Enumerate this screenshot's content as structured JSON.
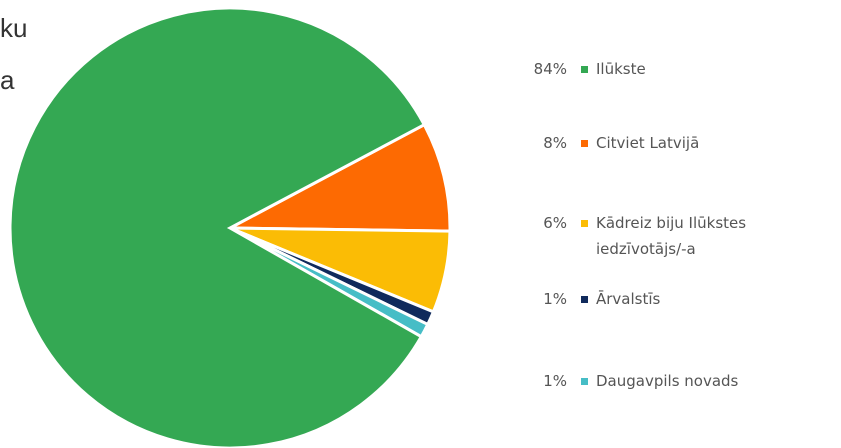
{
  "title_fragment": [
    "ku",
    "a"
  ],
  "chart_data": {
    "type": "pie",
    "slices": [
      {
        "label": "Ilūkste",
        "percent_label": "84%",
        "value": 84,
        "color": "#34a853"
      },
      {
        "label": "Citviet Latvijā",
        "percent_label": "8%",
        "value": 8,
        "color": "#fd6a02"
      },
      {
        "label": "Kādreiz biju Ilūkstes iedzīvotājs/-a",
        "percent_label": "6%",
        "value": 6,
        "color": "#fbbc05"
      },
      {
        "label": "Ārvalstīs",
        "percent_label": "1%",
        "value": 1,
        "color": "#102a5c"
      },
      {
        "label": "Daugavpils novads",
        "percent_label": "1%",
        "value": 1,
        "color": "#46bdc6"
      }
    ],
    "legend_position": "right"
  }
}
